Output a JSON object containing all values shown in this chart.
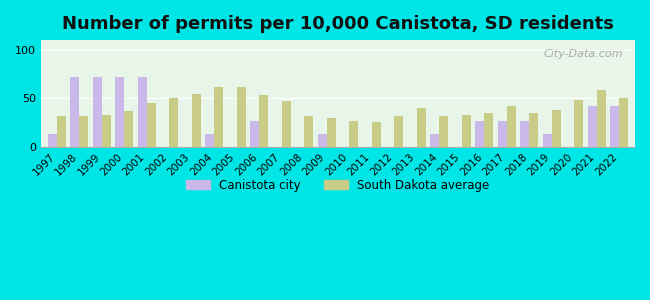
{
  "title": "Number of permits per 10,000 Canistota, SD residents",
  "years": [
    1997,
    1998,
    1999,
    2000,
    2001,
    2002,
    2003,
    2004,
    2005,
    2006,
    2007,
    2008,
    2009,
    2010,
    2011,
    2012,
    2013,
    2014,
    2015,
    2016,
    2017,
    2018,
    2019,
    2020,
    2021,
    2022
  ],
  "canistota": [
    13,
    72,
    72,
    72,
    72,
    0,
    0,
    13,
    0,
    27,
    0,
    0,
    13,
    0,
    0,
    0,
    0,
    13,
    0,
    27,
    27,
    27,
    13,
    0,
    42,
    42
  ],
  "sd_avg": [
    32,
    32,
    33,
    37,
    45,
    50,
    54,
    62,
    62,
    53,
    47,
    32,
    30,
    27,
    26,
    32,
    40,
    32,
    33,
    35,
    42,
    35,
    38,
    48,
    59,
    50
  ],
  "canistota_color": "#c9b8e8",
  "sd_avg_color": "#c8cc87",
  "background_outer": "#00e5e5",
  "background_plot": "#e8f5e9",
  "background_gradient_top": "#ddeeff",
  "ylim": [
    0,
    110
  ],
  "yticks": [
    0,
    50,
    100
  ],
  "bar_width": 0.4,
  "legend_canistota": "Canistota city",
  "legend_sd": "South Dakota average",
  "title_fontsize": 13,
  "watermark": "City-Data.com"
}
